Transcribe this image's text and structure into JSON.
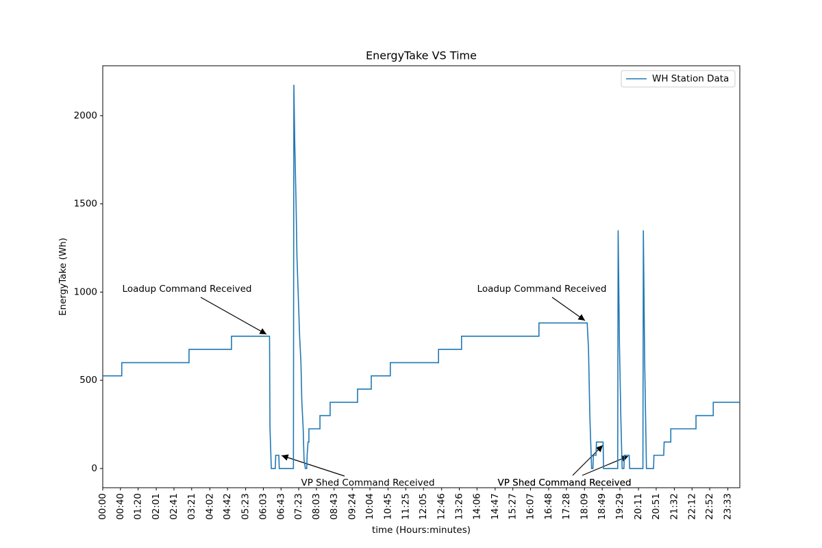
{
  "chart_data": {
    "type": "line",
    "title": "EnergyTake VS Time",
    "x_label": "time (Hours:minutes)",
    "y_label": "EnergyTake (Wh)",
    "xlim": [
      0,
      1440
    ],
    "ylim": [
      -109,
      2283
    ],
    "xticks": [
      {
        "value": 0,
        "label": "00:00"
      },
      {
        "value": 40,
        "label": "00:40"
      },
      {
        "value": 80,
        "label": "01:20"
      },
      {
        "value": 121,
        "label": "02:01"
      },
      {
        "value": 161,
        "label": "02:41"
      },
      {
        "value": 201,
        "label": "03:21"
      },
      {
        "value": 242,
        "label": "04:02"
      },
      {
        "value": 282,
        "label": "04:42"
      },
      {
        "value": 323,
        "label": "05:23"
      },
      {
        "value": 363,
        "label": "06:03"
      },
      {
        "value": 403,
        "label": "06:43"
      },
      {
        "value": 443,
        "label": "07:23"
      },
      {
        "value": 483,
        "label": "08:03"
      },
      {
        "value": 523,
        "label": "08:43"
      },
      {
        "value": 564,
        "label": "09:24"
      },
      {
        "value": 604,
        "label": "10:04"
      },
      {
        "value": 645,
        "label": "10:45"
      },
      {
        "value": 685,
        "label": "11:25"
      },
      {
        "value": 725,
        "label": "12:05"
      },
      {
        "value": 766,
        "label": "12:46"
      },
      {
        "value": 806,
        "label": "13:26"
      },
      {
        "value": 846,
        "label": "14:06"
      },
      {
        "value": 887,
        "label": "14:47"
      },
      {
        "value": 927,
        "label": "15:27"
      },
      {
        "value": 967,
        "label": "16:07"
      },
      {
        "value": 1008,
        "label": "16:48"
      },
      {
        "value": 1048,
        "label": "17:28"
      },
      {
        "value": 1089,
        "label": "18:09"
      },
      {
        "value": 1129,
        "label": "18:49"
      },
      {
        "value": 1169,
        "label": "19:29"
      },
      {
        "value": 1211,
        "label": "20:11"
      },
      {
        "value": 1251,
        "label": "20:51"
      },
      {
        "value": 1292,
        "label": "21:32"
      },
      {
        "value": 1332,
        "label": "22:12"
      },
      {
        "value": 1372,
        "label": "22:52"
      },
      {
        "value": 1413,
        "label": "23:33"
      }
    ],
    "yticks": [
      0,
      500,
      1000,
      1500,
      2000
    ],
    "grid": false,
    "legend": "upper right",
    "annotations": [
      "Loadup Command Received",
      "VP Shed Command Received",
      "Loadup Command Received",
      "VP Shed Command Received",
      "VP Shed Command Received"
    ],
    "series": [
      {
        "name": "WH Station Data",
        "color": "#1f77b4",
        "x": [
          0,
          43,
          43,
          195,
          195,
          291,
          291,
          377,
          378,
          381,
          390,
          391,
          398,
          399,
          431,
          432,
          434,
          437,
          439,
          441,
          443,
          445,
          448,
          450,
          453,
          455,
          458,
          461,
          462,
          464,
          466,
          466,
          491,
          491,
          514,
          514,
          576,
          576,
          607,
          607,
          650,
          650,
          759,
          759,
          811,
          811,
          986,
          986,
          1095,
          1098,
          1101,
          1105,
          1108,
          1109,
          1115,
          1116,
          1131,
          1132,
          1164,
          1165,
          1168,
          1171,
          1174,
          1178,
          1179,
          1190,
          1191,
          1221,
          1222,
          1225,
          1229,
          1245,
          1246,
          1268,
          1269,
          1284,
          1284,
          1341,
          1341,
          1380,
          1380,
          1440
        ],
        "values": [
          525,
          525,
          600,
          600,
          675,
          675,
          750,
          750,
          230,
          0,
          0,
          75,
          75,
          0,
          0,
          2175,
          1850,
          1500,
          1200,
          1050,
          900,
          750,
          600,
          380,
          230,
          50,
          0,
          0,
          75,
          150,
          150,
          225,
          225,
          300,
          300,
          375,
          375,
          450,
          450,
          525,
          525,
          600,
          600,
          675,
          675,
          750,
          750,
          825,
          825,
          680,
          300,
          0,
          0,
          75,
          75,
          150,
          150,
          0,
          0,
          1350,
          700,
          300,
          0,
          0,
          75,
          75,
          0,
          0,
          1350,
          600,
          0,
          0,
          75,
          75,
          150,
          150,
          225,
          225,
          300,
          300,
          375,
          375
        ]
      }
    ]
  }
}
